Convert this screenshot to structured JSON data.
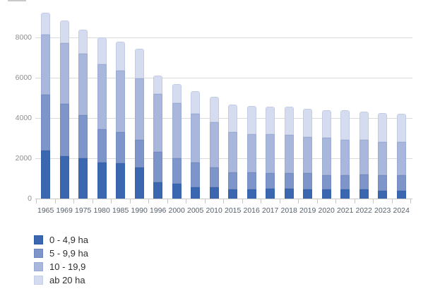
{
  "chart_data": {
    "type": "bar",
    "stacked": true,
    "categories": [
      "1965",
      "1969",
      "1975",
      "1980",
      "1985",
      "1990",
      "1996",
      "2000",
      "2005",
      "2010",
      "2015",
      "2016",
      "2017",
      "2018",
      "2019",
      "2020",
      "2021",
      "2022",
      "2023",
      "2024"
    ],
    "series": [
      {
        "name": "0 - 4,9 ha",
        "key": "size-0-4-9-ha",
        "color": "#3a67b0",
        "border": "#2c5aa5",
        "values": [
          2400,
          2100,
          2000,
          1800,
          1750,
          1550,
          800,
          750,
          550,
          550,
          450,
          450,
          500,
          500,
          450,
          450,
          450,
          450,
          400,
          400
        ]
      },
      {
        "name": "5 - 9,9 ha",
        "key": "size-5-9-9-ha",
        "color": "#7e95c9",
        "border": "#6d86c0",
        "values": [
          2750,
          2600,
          2150,
          1650,
          1550,
          1350,
          1500,
          1250,
          1250,
          1000,
          850,
          850,
          750,
          750,
          800,
          700,
          700,
          750,
          750,
          750
        ]
      },
      {
        "name": "10 - 19,9",
        "key": "size-10-19-9",
        "color": "#a9b7dc",
        "border": "#9aaad4",
        "values": [
          2980,
          3030,
          3050,
          3200,
          3050,
          3050,
          2900,
          2750,
          2400,
          2250,
          2000,
          1900,
          1950,
          1900,
          1800,
          1850,
          1750,
          1700,
          1650,
          1650
        ]
      },
      {
        "name": "ab 20 ha",
        "key": "size-ab-20-ha",
        "color": "#d5dcf0",
        "border": "#c5cfe9",
        "values": [
          1090,
          1120,
          1200,
          1350,
          1450,
          1480,
          900,
          950,
          1150,
          1250,
          1350,
          1400,
          1350,
          1400,
          1400,
          1400,
          1500,
          1400,
          1450,
          1400
        ]
      }
    ],
    "yticks": [
      0,
      2000,
      4000,
      6000,
      8000
    ],
    "ylim": [
      0,
      9500
    ],
    "xlabel": "",
    "ylabel": "",
    "grid": true,
    "legend_position": "bottom-left"
  }
}
